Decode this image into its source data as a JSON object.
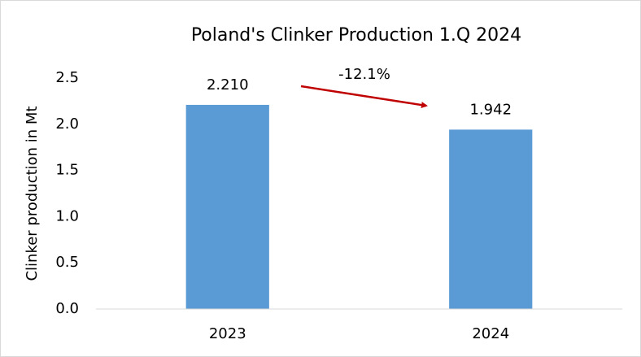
{
  "chart_data": {
    "type": "bar",
    "title": "Poland's Clinker Production 1.Q 2024",
    "y_label": "Clinker production in Mt",
    "categories": [
      "2023",
      "2024"
    ],
    "values": [
      2.21,
      1.942
    ],
    "value_labels": [
      "2.210",
      "1.942"
    ],
    "color": "#5b9bd5",
    "ylim": [
      0,
      2.5
    ],
    "yticks": [
      {
        "value": 0,
        "label": "0.0"
      },
      {
        "value": 0.5,
        "label": "0.5"
      },
      {
        "value": 1,
        "label": "1.0"
      },
      {
        "value": 1.5,
        "label": "1.5"
      },
      {
        "value": 2,
        "label": "2.0"
      },
      {
        "value": 2.5,
        "label": "2.5"
      }
    ],
    "grid": false,
    "annotation": {
      "text": "-12.1%",
      "color": "#c00000"
    }
  }
}
